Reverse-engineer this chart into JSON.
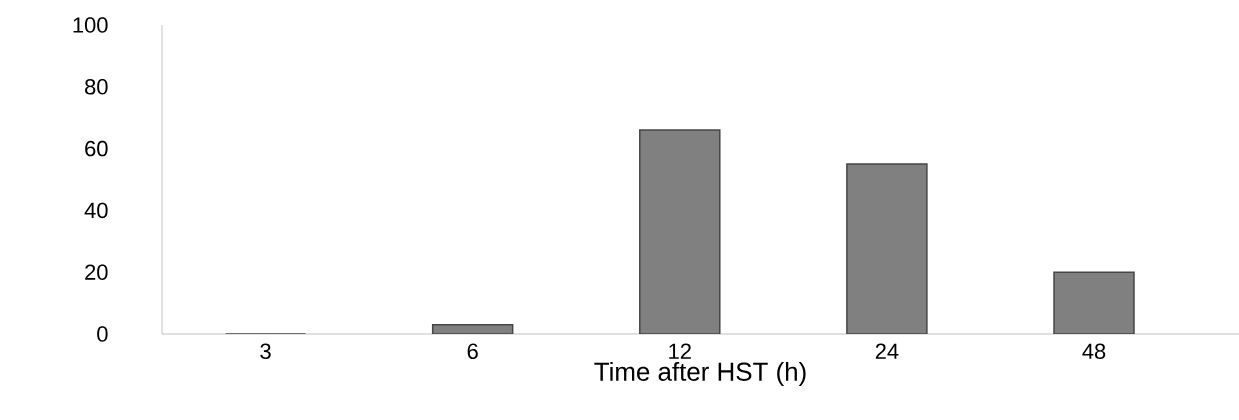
{
  "chart_data": {
    "type": "bar",
    "xlabel": "Time after HST (h)",
    "categories": [
      "3",
      "6",
      "12",
      "24",
      "48"
    ],
    "values": [
      0,
      3,
      66,
      55,
      20
    ],
    "color": "#808080",
    "ylim": [
      0,
      100
    ],
    "yticks": [
      0,
      20,
      40,
      60,
      80,
      100
    ],
    "grid": false
  }
}
